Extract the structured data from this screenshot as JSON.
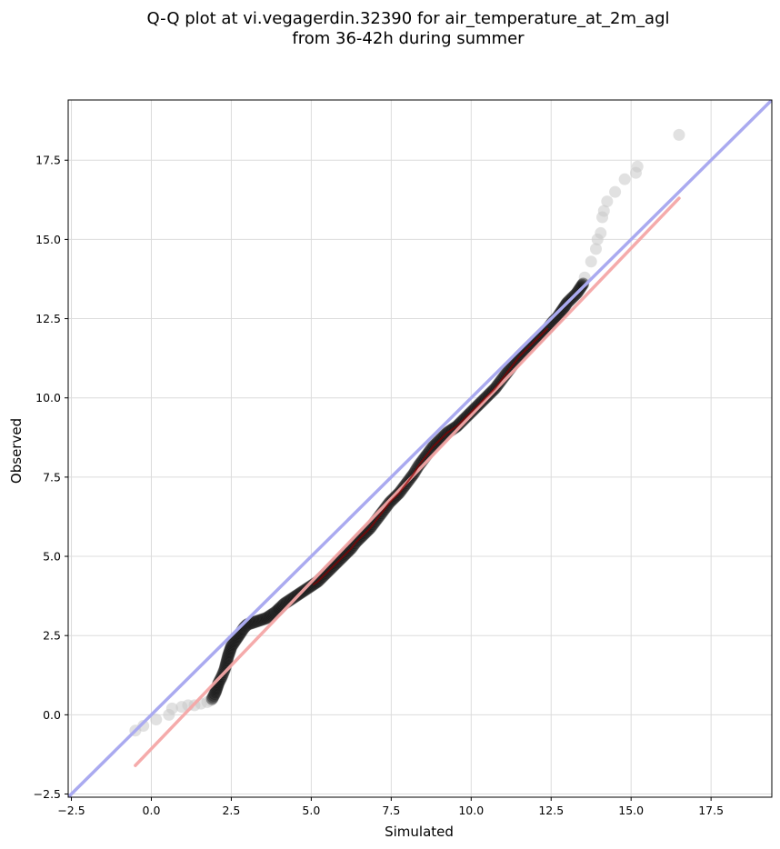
{
  "chart_data": {
    "type": "scatter",
    "title_lines": [
      "Q-Q plot at vi.vegagerdin.32390 for air_temperature_at_2m_agl",
      "from 36-42h during summer"
    ],
    "xlabel": "Simulated",
    "ylabel": "Observed",
    "xlim": [
      -2.6,
      19.4
    ],
    "ylim": [
      -2.6,
      19.4
    ],
    "xticks": [
      -2.5,
      0.0,
      2.5,
      5.0,
      7.5,
      10.0,
      12.5,
      15.0,
      17.5
    ],
    "yticks": [
      -2.5,
      0.0,
      2.5,
      5.0,
      7.5,
      10.0,
      12.5,
      15.0,
      17.5
    ],
    "tick_labels": [
      "−2.5",
      "0.0",
      "2.5",
      "5.0",
      "7.5",
      "10.0",
      "12.5",
      "15.0",
      "17.5"
    ],
    "grid": true,
    "reference_line": {
      "name": "1:1 line",
      "color": "#aaaaf0",
      "from": [
        -2.6,
        -2.6
      ],
      "to": [
        19.4,
        19.4
      ]
    },
    "fit_line": {
      "name": "linear fit",
      "color": "#f4a6a6",
      "from": [
        -0.5,
        -1.6
      ],
      "to": [
        16.5,
        16.3
      ]
    },
    "main_series_color": "#1a1a1a",
    "overlay_color": "#8b0000",
    "tail_color": "#c8c8c8",
    "tail_points": {
      "x": [
        -0.5,
        -0.25,
        0.15,
        0.55,
        0.65,
        0.95,
        1.15,
        1.35,
        1.55,
        1.75,
        1.85,
        13.55,
        13.75,
        13.9,
        13.95,
        14.05,
        14.1,
        14.15,
        14.25,
        14.5,
        14.8,
        15.15,
        15.2,
        16.5
      ],
      "y": [
        -0.5,
        -0.35,
        -0.15,
        0.0,
        0.2,
        0.25,
        0.3,
        0.3,
        0.35,
        0.4,
        0.45,
        13.8,
        14.3,
        14.7,
        15.0,
        15.2,
        15.7,
        15.9,
        16.2,
        16.5,
        16.9,
        17.1,
        17.3,
        18.3
      ]
    },
    "main_points_xy": [
      [
        1.9,
        0.5
      ],
      [
        2.0,
        0.7
      ],
      [
        2.05,
        0.85
      ],
      [
        2.1,
        1.0
      ],
      [
        2.2,
        1.2
      ],
      [
        2.3,
        1.45
      ],
      [
        2.35,
        1.65
      ],
      [
        2.4,
        1.85
      ],
      [
        2.45,
        2.0
      ],
      [
        2.5,
        2.15
      ],
      [
        2.6,
        2.3
      ],
      [
        2.7,
        2.45
      ],
      [
        2.8,
        2.6
      ],
      [
        2.9,
        2.75
      ],
      [
        3.0,
        2.85
      ],
      [
        3.15,
        2.9
      ],
      [
        3.3,
        2.95
      ],
      [
        3.45,
        3.0
      ],
      [
        3.6,
        3.05
      ],
      [
        3.75,
        3.15
      ],
      [
        3.9,
        3.25
      ],
      [
        4.0,
        3.35
      ],
      [
        4.15,
        3.5
      ],
      [
        4.3,
        3.6
      ],
      [
        4.45,
        3.7
      ],
      [
        4.6,
        3.8
      ],
      [
        4.75,
        3.9
      ],
      [
        4.9,
        4.0
      ],
      [
        5.05,
        4.1
      ],
      [
        5.2,
        4.2
      ],
      [
        5.35,
        4.35
      ],
      [
        5.5,
        4.5
      ],
      [
        5.65,
        4.65
      ],
      [
        5.8,
        4.8
      ],
      [
        5.95,
        4.95
      ],
      [
        6.1,
        5.1
      ],
      [
        6.25,
        5.25
      ],
      [
        6.4,
        5.45
      ],
      [
        6.55,
        5.6
      ],
      [
        6.7,
        5.75
      ],
      [
        6.85,
        5.9
      ],
      [
        7.0,
        6.1
      ],
      [
        7.15,
        6.3
      ],
      [
        7.3,
        6.5
      ],
      [
        7.45,
        6.7
      ],
      [
        7.6,
        6.85
      ],
      [
        7.75,
        7.0
      ],
      [
        7.9,
        7.2
      ],
      [
        8.05,
        7.4
      ],
      [
        8.2,
        7.6
      ],
      [
        8.35,
        7.85
      ],
      [
        8.5,
        8.05
      ],
      [
        8.65,
        8.25
      ],
      [
        8.8,
        8.45
      ],
      [
        8.95,
        8.6
      ],
      [
        9.1,
        8.75
      ],
      [
        9.25,
        8.9
      ],
      [
        9.4,
        9.0
      ],
      [
        9.55,
        9.1
      ],
      [
        9.7,
        9.25
      ],
      [
        9.85,
        9.4
      ],
      [
        10.0,
        9.55
      ],
      [
        10.15,
        9.7
      ],
      [
        10.3,
        9.85
      ],
      [
        10.45,
        10.0
      ],
      [
        10.6,
        10.15
      ],
      [
        10.75,
        10.3
      ],
      [
        10.9,
        10.5
      ],
      [
        11.05,
        10.7
      ],
      [
        11.2,
        10.9
      ],
      [
        11.35,
        11.1
      ],
      [
        11.5,
        11.3
      ],
      [
        11.65,
        11.45
      ],
      [
        11.8,
        11.6
      ],
      [
        11.95,
        11.75
      ],
      [
        12.1,
        11.9
      ],
      [
        12.25,
        12.05
      ],
      [
        12.4,
        12.2
      ],
      [
        12.55,
        12.4
      ],
      [
        12.7,
        12.55
      ],
      [
        12.8,
        12.7
      ],
      [
        12.9,
        12.85
      ],
      [
        13.0,
        13.0
      ],
      [
        13.15,
        13.15
      ],
      [
        13.3,
        13.3
      ],
      [
        13.4,
        13.45
      ],
      [
        13.5,
        13.6
      ]
    ]
  }
}
